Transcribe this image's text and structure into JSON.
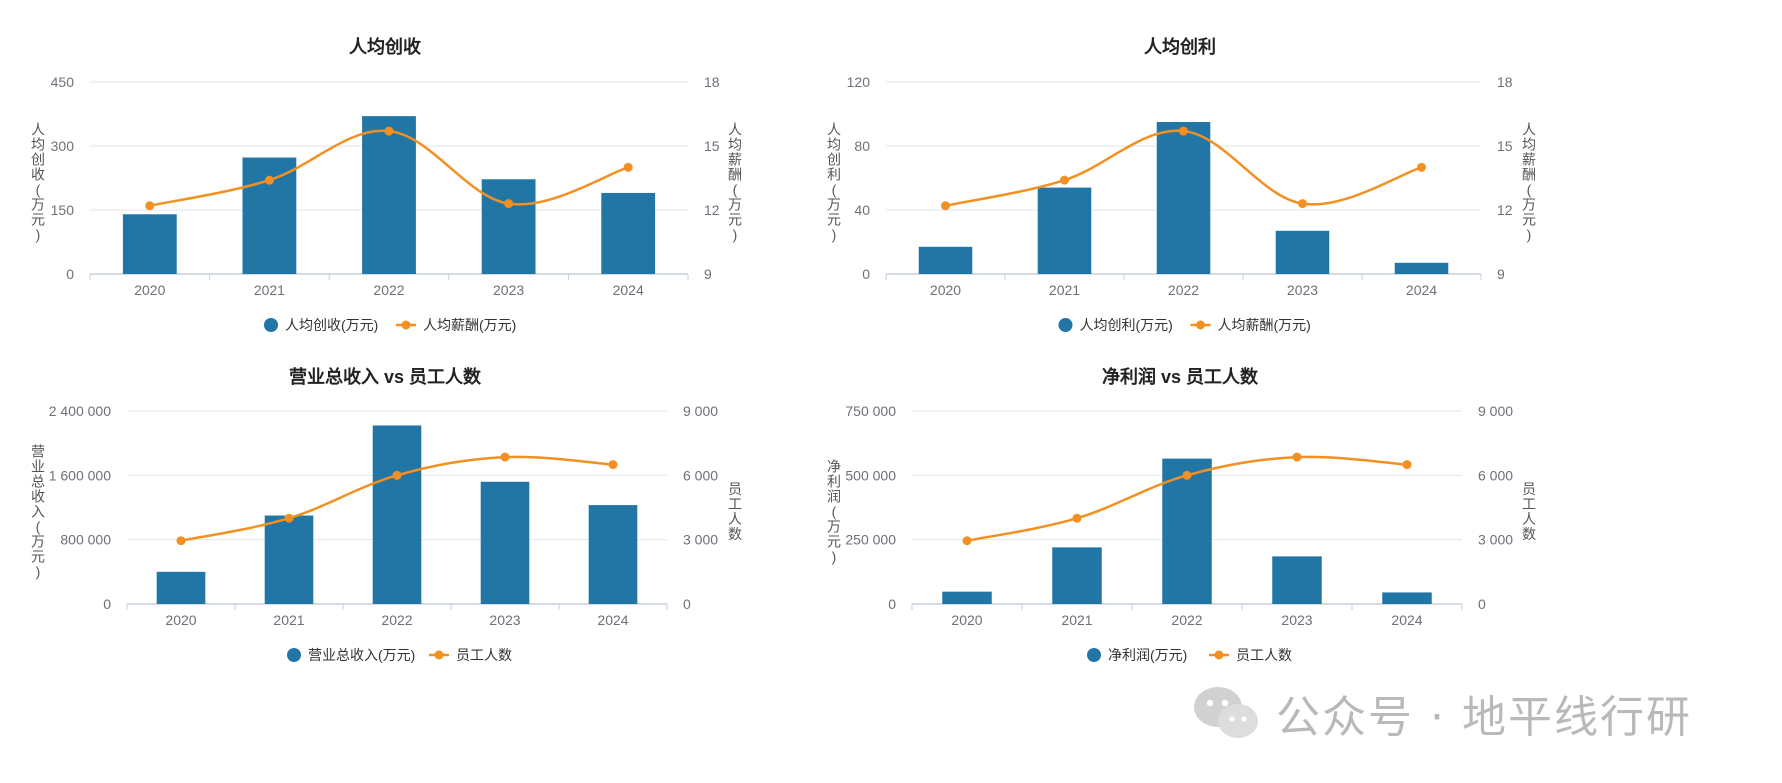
{
  "colors": {
    "bar": "#2176a5",
    "line": "#f39022",
    "grid": "#e0e6f1",
    "axis": "#c5cfdc"
  },
  "watermark": {
    "text": "公众号 · 地平线行研",
    "icon": "wechat-icon"
  },
  "chart_data": [
    {
      "type": "bar+line",
      "title": "人均创收",
      "categories": [
        "2020",
        "2021",
        "2022",
        "2023",
        "2024"
      ],
      "bar": {
        "name": "人均创收(万元)",
        "values": [
          140,
          273,
          370,
          222,
          190
        ]
      },
      "line": {
        "name": "人均薪酬(万元)",
        "values": [
          12.2,
          13.4,
          15.7,
          12.3,
          14.0
        ]
      },
      "ylabel_left": "人均创收(万元)",
      "ylabel_right": "人均薪酬(万元)",
      "left_ticks": [
        "0",
        "150",
        "300",
        "450"
      ],
      "right_ticks": [
        "9",
        "12",
        "15",
        "18"
      ],
      "left_range": [
        0,
        450
      ],
      "right_range": [
        9,
        18
      ],
      "legend": [
        "人均创收(万元)",
        "人均薪酬(万元)"
      ]
    },
    {
      "type": "bar+line",
      "title": "人均创利",
      "categories": [
        "2020",
        "2021",
        "2022",
        "2023",
        "2024"
      ],
      "bar": {
        "name": "人均创利(万元)",
        "values": [
          17,
          54,
          95,
          27,
          7
        ]
      },
      "line": {
        "name": "人均薪酬(万元)",
        "values": [
          12.2,
          13.4,
          15.7,
          12.3,
          14.0
        ]
      },
      "ylabel_left": "人均创利(万元)",
      "ylabel_right": "人均薪酬(万元)",
      "left_ticks": [
        "0",
        "40",
        "80",
        "120"
      ],
      "right_ticks": [
        "9",
        "12",
        "15",
        "18"
      ],
      "left_range": [
        0,
        120
      ],
      "right_range": [
        9,
        18
      ],
      "legend": [
        "人均创利(万元)",
        "人均薪酬(万元)"
      ]
    },
    {
      "type": "bar+line",
      "title": "营业总收入 vs 员工人数",
      "categories": [
        "2020",
        "2021",
        "2022",
        "2023",
        "2024"
      ],
      "bar": {
        "name": "营业总收入(万元)",
        "values": [
          400000,
          1100000,
          2220000,
          1520000,
          1230000
        ]
      },
      "line": {
        "name": "员工人数",
        "values": [
          2950,
          4000,
          6000,
          6850,
          6500
        ]
      },
      "ylabel_left": "营业总收入(万元)",
      "ylabel_right": "员工人数",
      "left_ticks": [
        "0",
        "800 000",
        "1 600 000",
        "2 400 000"
      ],
      "right_ticks": [
        "0",
        "3 000",
        "6 000",
        "9 000"
      ],
      "left_range": [
        0,
        2400000
      ],
      "right_range": [
        0,
        9000
      ],
      "legend": [
        "营业总收入(万元)",
        "员工人数"
      ]
    },
    {
      "type": "bar+line",
      "title": "净利润 vs 员工人数",
      "categories": [
        "2020",
        "2021",
        "2022",
        "2023",
        "2024"
      ],
      "bar": {
        "name": "净利润(万元)",
        "values": [
          48000,
          220000,
          565000,
          185000,
          45000
        ]
      },
      "line": {
        "name": "员工人数",
        "values": [
          2950,
          4000,
          6000,
          6850,
          6500
        ]
      },
      "ylabel_left": "净利润(万元)",
      "ylabel_right": "员工人数",
      "left_ticks": [
        "0",
        "250 000",
        "500 000",
        "750 000"
      ],
      "right_ticks": [
        "0",
        "3 000",
        "6 000",
        "9 000"
      ],
      "left_range": [
        0,
        750000
      ],
      "right_range": [
        0,
        9000
      ],
      "legend": [
        "净利润(万元)",
        "员工人数"
      ]
    }
  ]
}
